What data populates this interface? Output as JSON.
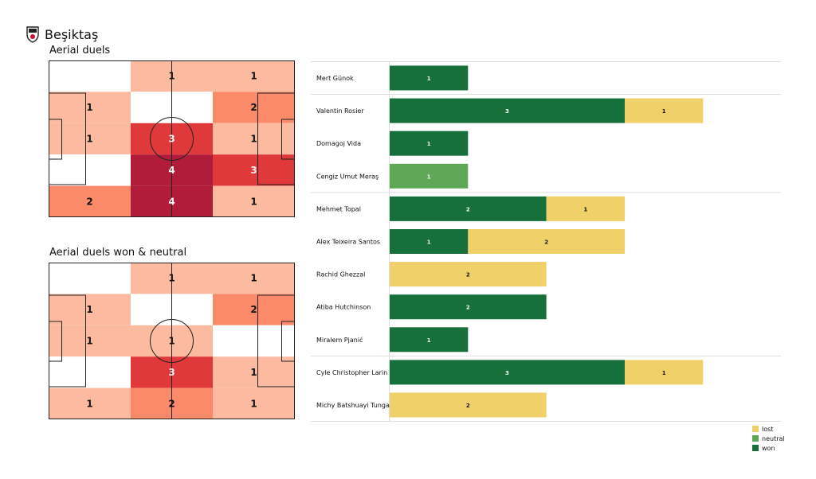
{
  "header": {
    "team": "Beşiktaş"
  },
  "colors": {
    "won": "#17703a",
    "neutral": "#5fa858",
    "lost": "#f0d069"
  },
  "legend": [
    {
      "key": "lost",
      "label": "lost"
    },
    {
      "key": "neutral",
      "label": "neutral"
    },
    {
      "key": "won",
      "label": "won"
    }
  ],
  "chart_data": [
    {
      "type": "heatmap",
      "title": "Aerial duels",
      "values": [
        [
          0,
          1,
          1
        ],
        [
          1,
          0,
          2
        ],
        [
          1,
          3,
          1
        ],
        [
          0,
          4,
          3
        ],
        [
          2,
          4,
          1
        ]
      ]
    },
    {
      "type": "heatmap",
      "title": "Aerial duels won & neutral",
      "values": [
        [
          0,
          1,
          1
        ],
        [
          1,
          0,
          2
        ],
        [
          1,
          1,
          0
        ],
        [
          0,
          3,
          1
        ],
        [
          1,
          2,
          1
        ]
      ]
    },
    {
      "type": "bar",
      "stacked": true,
      "orientation": "horizontal",
      "categories": [
        "Mert Günok",
        "Valentin Rosier",
        "Domagoj Vida",
        "Cengiz Umut Meraş",
        "Mehmet Topal",
        "Alex  Teixeira Santos",
        "Rachid Ghezzal",
        "Atiba Hutchinson",
        "Miralem Pjanić",
        "Cyle Christopher Larin",
        "Michy Batshuayi Tunga"
      ],
      "groups": [
        [
          0
        ],
        [
          1,
          2,
          3
        ],
        [
          4,
          5,
          6,
          7,
          8
        ],
        [
          9,
          10
        ]
      ],
      "series": [
        {
          "name": "won",
          "values": [
            1,
            3,
            1,
            0,
            2,
            1,
            0,
            2,
            1,
            3,
            0
          ]
        },
        {
          "name": "neutral",
          "values": [
            0,
            0,
            0,
            1,
            0,
            0,
            0,
            0,
            0,
            0,
            0
          ]
        },
        {
          "name": "lost",
          "values": [
            0,
            1,
            0,
            0,
            1,
            2,
            2,
            0,
            0,
            1,
            2
          ]
        }
      ]
    }
  ]
}
